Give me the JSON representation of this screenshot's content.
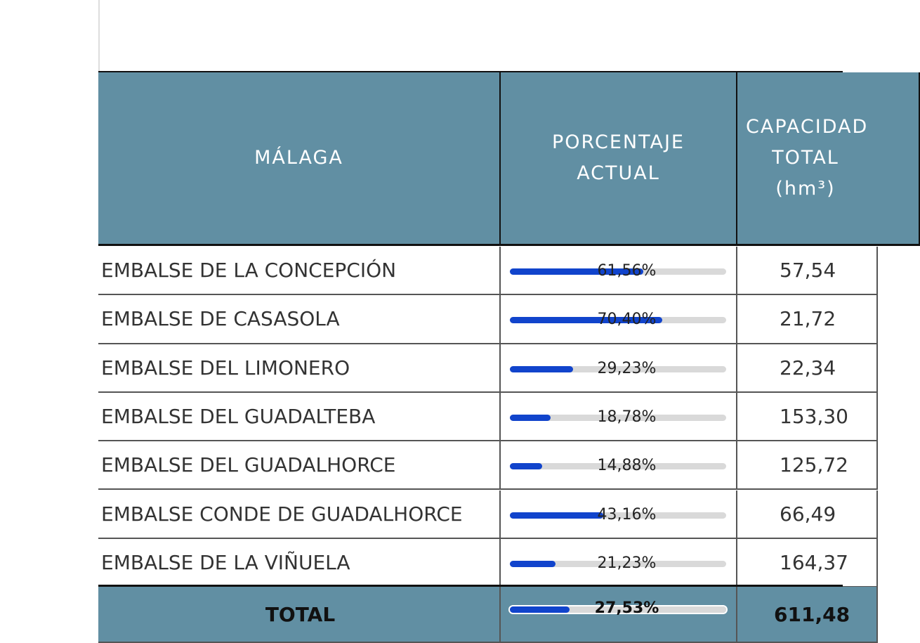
{
  "table": {
    "header": [
      "MÁLAGA",
      "PORCENTAJE ACTUAL",
      "CAPACIDAD TOTAL (hm³)"
    ],
    "rows": [
      {
        "name": "EMBALSE DE LA CONCEPCIÓN",
        "pct": 61.56,
        "pct_label": "61,56%",
        "capacity": "57,54"
      },
      {
        "name": "EMBALSE DE CASASOLA",
        "pct": 70.4,
        "pct_label": "70,40%",
        "capacity": "21,72"
      },
      {
        "name": "EMBALSE DEL LIMONERO",
        "pct": 29.23,
        "pct_label": "29,23%",
        "capacity": "22,34"
      },
      {
        "name": "EMBALSE DEL GUADALTEBA",
        "pct": 18.78,
        "pct_label": "18,78%",
        "capacity": "153,30"
      },
      {
        "name": "EMBALSE DEL GUADALHORCE",
        "pct": 14.88,
        "pct_label": "14,88%",
        "capacity": "125,72"
      },
      {
        "name": "EMBALSE CONDE DE GUADALHORCE",
        "pct": 43.16,
        "pct_label": "43,16%",
        "capacity": "66,49"
      },
      {
        "name": "EMBALSE DE LA VIÑUELA",
        "pct": 21.23,
        "pct_label": "21,23%",
        "capacity": "164,37"
      }
    ],
    "total": {
      "name": "TOTAL",
      "pct": 27.53,
      "pct_label": "27,53%",
      "capacity": "611,48"
    }
  }
}
